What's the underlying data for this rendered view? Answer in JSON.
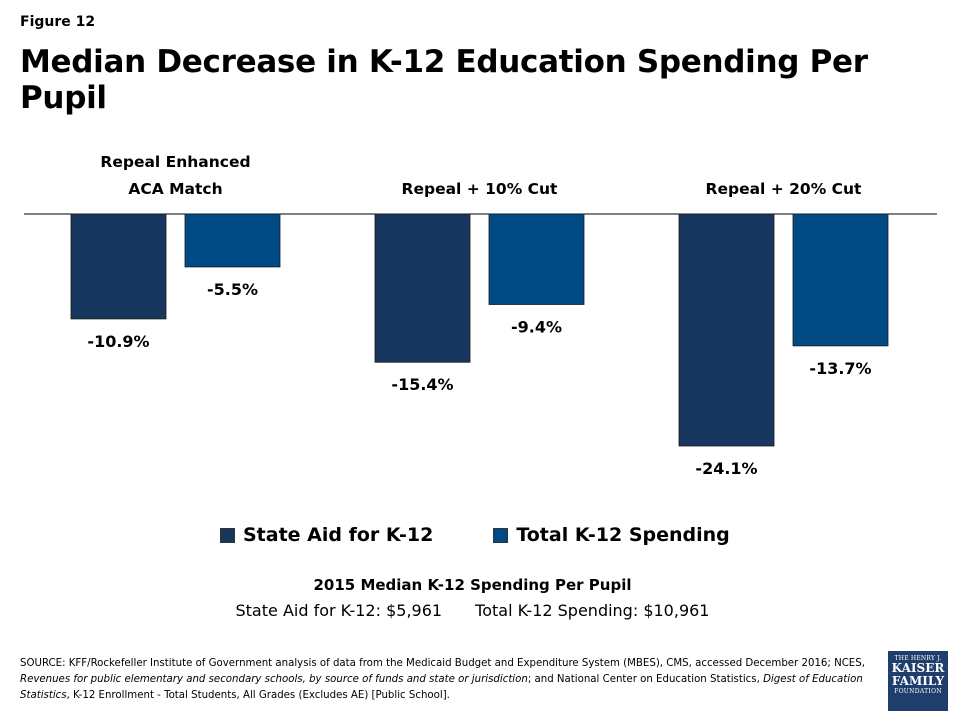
{
  "figure_label": "Figure 12",
  "title": "Median Decrease in K-12 Education Spending Per Pupil",
  "colors": {
    "state_aid": "#17375e",
    "total": "#004a86"
  },
  "chart_data": {
    "type": "bar",
    "title": "Median Decrease in K-12 Education Spending Per Pupil",
    "categories": [
      "Repeal Enhanced ACA Match",
      "Repeal + 10% Cut",
      "Repeal + 20% Cut"
    ],
    "category_lines": [
      [
        "Repeal Enhanced",
        "ACA Match"
      ],
      [
        "Repeal + 10% Cut"
      ],
      [
        "Repeal + 20% Cut"
      ]
    ],
    "series": [
      {
        "name": "State Aid for K-12",
        "values": [
          -10.9,
          -15.4,
          -24.1
        ],
        "labels": [
          "-10.9%",
          "-15.4%",
          "-24.1%"
        ]
      },
      {
        "name": "Total K-12 Spending",
        "values": [
          -5.5,
          -9.4,
          -13.7
        ],
        "labels": [
          "-5.5%",
          "-9.4%",
          "-13.7%"
        ]
      }
    ],
    "ylim": [
      -30,
      0
    ],
    "legend_position": "bottom",
    "grid": false
  },
  "legend": {
    "state_aid": "State Aid for K-12",
    "total": "Total K-12 Spending"
  },
  "median": {
    "title": "2015 Median K-12 Spending Per Pupil",
    "state_aid": "State Aid for K-12: $5,961",
    "total": "Total K-12 Spending: $10,961"
  },
  "source": {
    "prefix": "SOURCE:  KFF/Rockefeller Institute of Government  analysis of data from the Medicaid Budget and Expenditure System (MBES), CMS, accessed December 2016; NCES, ",
    "italic1": "Revenues for public elementary and secondary schools, by source of funds and state or jurisdiction",
    "middle": "; and National Center on Education Statistics, ",
    "italic2": "Digest of Education Statistics",
    "suffix": ",  K-12 Enrollment - Total Students, All Grades (Excludes AE) [Public School]."
  },
  "logo": {
    "line1": "THE HENRY J.",
    "line2": "KAISER",
    "line3": "FAMILY",
    "line4": "FOUNDATION"
  }
}
